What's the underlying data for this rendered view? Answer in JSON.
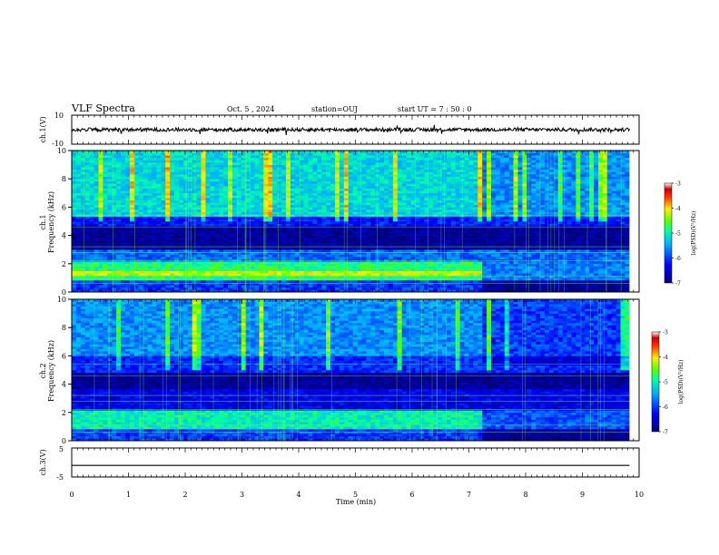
{
  "header": {
    "title": "VLF Spectra",
    "date": "Oct. 5 , 2024",
    "station": "station=OUJ",
    "start": "start UT = 7 : 50 : 0"
  },
  "chart_data": [
    {
      "type": "line",
      "name": "ch1-waveform",
      "ylabel": "ch.1(V)",
      "ylim": [
        -10,
        10
      ],
      "yticks": [
        "10",
        "-10"
      ],
      "x_range_min": [
        0,
        9.83
      ],
      "baseline_v": 0,
      "envelope_amplitude_v": 2.5
    },
    {
      "type": "heatmap",
      "name": "ch1-spectrogram",
      "ylabel": "ch.1\nFrequency (kHz)",
      "ylim": [
        0,
        10
      ],
      "yticks": [
        "0",
        "2",
        "4",
        "6",
        "8",
        "10"
      ],
      "colorbar": {
        "min": -7,
        "max": -3,
        "ticks": [
          "-3",
          "-4",
          "-5",
          "-6",
          "-7"
        ],
        "label": "log(PSD)(V²/Hz)"
      },
      "level_change_time_min": 7.25,
      "bands_khz": [
        {
          "from": 0.0,
          "to": 0.8,
          "value": -6.0
        },
        {
          "from": 0.8,
          "to": 2.1,
          "value": -4.8
        },
        {
          "from": 2.1,
          "to": 3.0,
          "value": -5.8
        },
        {
          "from": 3.0,
          "to": 4.6,
          "value": -6.9
        },
        {
          "from": 4.6,
          "to": 5.4,
          "value": -6.2
        },
        {
          "from": 5.4,
          "to": 10.0,
          "value": -5.2
        }
      ]
    },
    {
      "type": "heatmap",
      "name": "ch2-spectrogram",
      "ylabel": "ch.2\nFrequency (kHz)",
      "ylim": [
        0,
        10
      ],
      "yticks": [
        "0",
        "2",
        "4",
        "6",
        "8",
        "10"
      ],
      "colorbar": {
        "min": -7,
        "max": -3,
        "ticks": [
          "-3",
          "-4",
          "-5",
          "-6",
          "-7"
        ],
        "label": "log(PSD)(V²/Hz)"
      },
      "level_change_time_min": 7.25,
      "bands_khz": [
        {
          "from": 0.0,
          "to": 0.8,
          "value": -6.0
        },
        {
          "from": 0.8,
          "to": 2.1,
          "value": -5.0
        },
        {
          "from": 2.1,
          "to": 3.6,
          "value": -6.4
        },
        {
          "from": 3.6,
          "to": 4.8,
          "value": -6.9
        },
        {
          "from": 4.8,
          "to": 6.0,
          "value": -6.1
        },
        {
          "from": 6.0,
          "to": 10.0,
          "value": -5.6
        }
      ]
    },
    {
      "type": "line",
      "name": "ch3-waveform",
      "ylabel": "ch.3(V)",
      "ylim": [
        -5,
        5
      ],
      "yticks": [
        "5",
        "-5"
      ],
      "x_range_min": [
        0,
        9.83
      ],
      "constant_v": -1.0
    }
  ],
  "x_axis": {
    "label": "Time (min)",
    "range": [
      0,
      10
    ],
    "ticks": [
      "0",
      "1",
      "2",
      "3",
      "4",
      "5",
      "6",
      "7",
      "8",
      "9",
      "10"
    ]
  },
  "colors": {
    "colormap": [
      "#00007f",
      "#0000ff",
      "#00aaff",
      "#00ffaa",
      "#55ff00",
      "#ffee00",
      "#ff5500",
      "#cc0000",
      "#ffffff"
    ]
  }
}
